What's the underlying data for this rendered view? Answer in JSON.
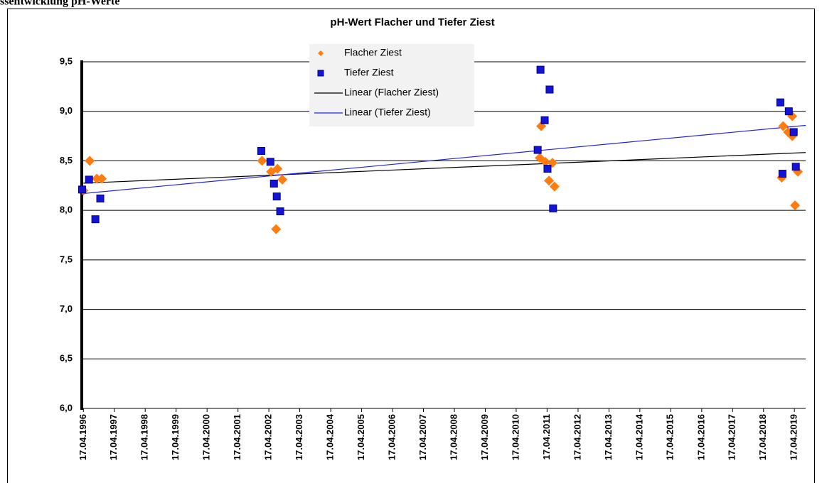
{
  "heading": "ssentwicklung pH-Werte",
  "chart_data": {
    "type": "scatter",
    "title": "pH-Wert  Flacher und Tiefer Ziest",
    "xlim": [
      "1996-03-20",
      "2019-08-28"
    ],
    "xticks": [
      {
        "value": "1996-04-17",
        "label": "17.04.1996"
      },
      {
        "value": "1997-04-17",
        "label": "17.04.1997"
      },
      {
        "value": "1998-04-17",
        "label": "17.04.1998"
      },
      {
        "value": "1999-04-17",
        "label": "17.04.1999"
      },
      {
        "value": "2000-04-17",
        "label": "17.04.2000"
      },
      {
        "value": "2001-04-17",
        "label": "17.04.2001"
      },
      {
        "value": "2002-04-17",
        "label": "17.04.2002"
      },
      {
        "value": "2003-04-17",
        "label": "17.04.2003"
      },
      {
        "value": "2004-04-17",
        "label": "17.04.2004"
      },
      {
        "value": "2005-04-17",
        "label": "17.04.2005"
      },
      {
        "value": "2006-04-17",
        "label": "17.04.2006"
      },
      {
        "value": "2007-04-17",
        "label": "17.04.2007"
      },
      {
        "value": "2008-04-17",
        "label": "17.04.2008"
      },
      {
        "value": "2009-04-17",
        "label": "17.04.2009"
      },
      {
        "value": "2010-04-17",
        "label": "17.04.2010"
      },
      {
        "value": "2011-04-17",
        "label": "17.04.2011"
      },
      {
        "value": "2012-04-17",
        "label": "17.04.2012"
      },
      {
        "value": "2013-04-17",
        "label": "17.04.2013"
      },
      {
        "value": "2014-04-17",
        "label": "17.04.2014"
      },
      {
        "value": "2015-04-17",
        "label": "17.04.2015"
      },
      {
        "value": "2016-04-17",
        "label": "17.04.2016"
      },
      {
        "value": "2017-04-17",
        "label": "17.04.2017"
      },
      {
        "value": "2018-04-17",
        "label": "17.04.2018"
      },
      {
        "value": "2019-04-17",
        "label": "17.04.2019"
      }
    ],
    "ylim": [
      6,
      9.5
    ],
    "yticks": [
      {
        "value": 6,
        "label": "6,0"
      },
      {
        "value": 6.5,
        "label": "6,5"
      },
      {
        "value": 7,
        "label": "7,0"
      },
      {
        "value": 7.5,
        "label": "7,5"
      },
      {
        "value": 8,
        "label": "8,0"
      },
      {
        "value": 8.5,
        "label": "8,5"
      },
      {
        "value": 9,
        "label": "9,0"
      },
      {
        "value": 9.5,
        "label": "9,5"
      }
    ],
    "grid": true,
    "series": [
      {
        "name": "Flacher Ziest",
        "color": "#ff7c10",
        "marker": "diamond",
        "trendline": {
          "name": "Linear (Flacher Ziest)",
          "color": "#000000"
        },
        "x": [
          "1996-04-17",
          "1996-06-30",
          "1996-09-22",
          "1996-11-19",
          "2002-01-26",
          "2002-05-13",
          "2002-07-28",
          "2002-09-23",
          "2002-07-11",
          "2011-01-21",
          "2011-02-06",
          "2011-03-28",
          "2011-05-09",
          "2011-06-19",
          "2011-07-14",
          "2018-12-05",
          "2018-11-18",
          "2019-02-01",
          "2019-03-23",
          "2019-03-23",
          "2019-05-29",
          "2019-04-25"
        ],
        "values": [
          8.2,
          8.5,
          8.32,
          8.32,
          8.5,
          8.39,
          8.42,
          8.31,
          7.81,
          8.53,
          8.85,
          8.49,
          8.3,
          8.48,
          8.24,
          8.85,
          8.33,
          8.79,
          8.75,
          8.95,
          8.39,
          8.05
        ]
      },
      {
        "name": "Tiefer Ziest",
        "color": "#1414d8",
        "marker": "square",
        "trendline": {
          "name": "Linear (Tiefer Ziest)",
          "color": "#2020e0"
        },
        "x": [
          "1996-04-01",
          "1996-06-22",
          "1996-09-05",
          "1996-11-02",
          "2002-01-17",
          "2002-05-05",
          "2002-06-16",
          "2002-07-19",
          "2002-08-29",
          "2010-12-27",
          "2011-01-29",
          "2011-03-20",
          "2011-04-22",
          "2011-05-17",
          "2011-06-27",
          "2018-11-02",
          "2018-11-27",
          "2019-02-10",
          "2019-04-09",
          "2019-05-04"
        ],
        "values": [
          8.21,
          8.31,
          7.91,
          8.12,
          8.6,
          8.49,
          8.27,
          8.14,
          7.99,
          8.61,
          9.42,
          8.91,
          8.42,
          9.22,
          8.02,
          9.09,
          8.37,
          9.0,
          8.79,
          8.44
        ]
      }
    ]
  }
}
